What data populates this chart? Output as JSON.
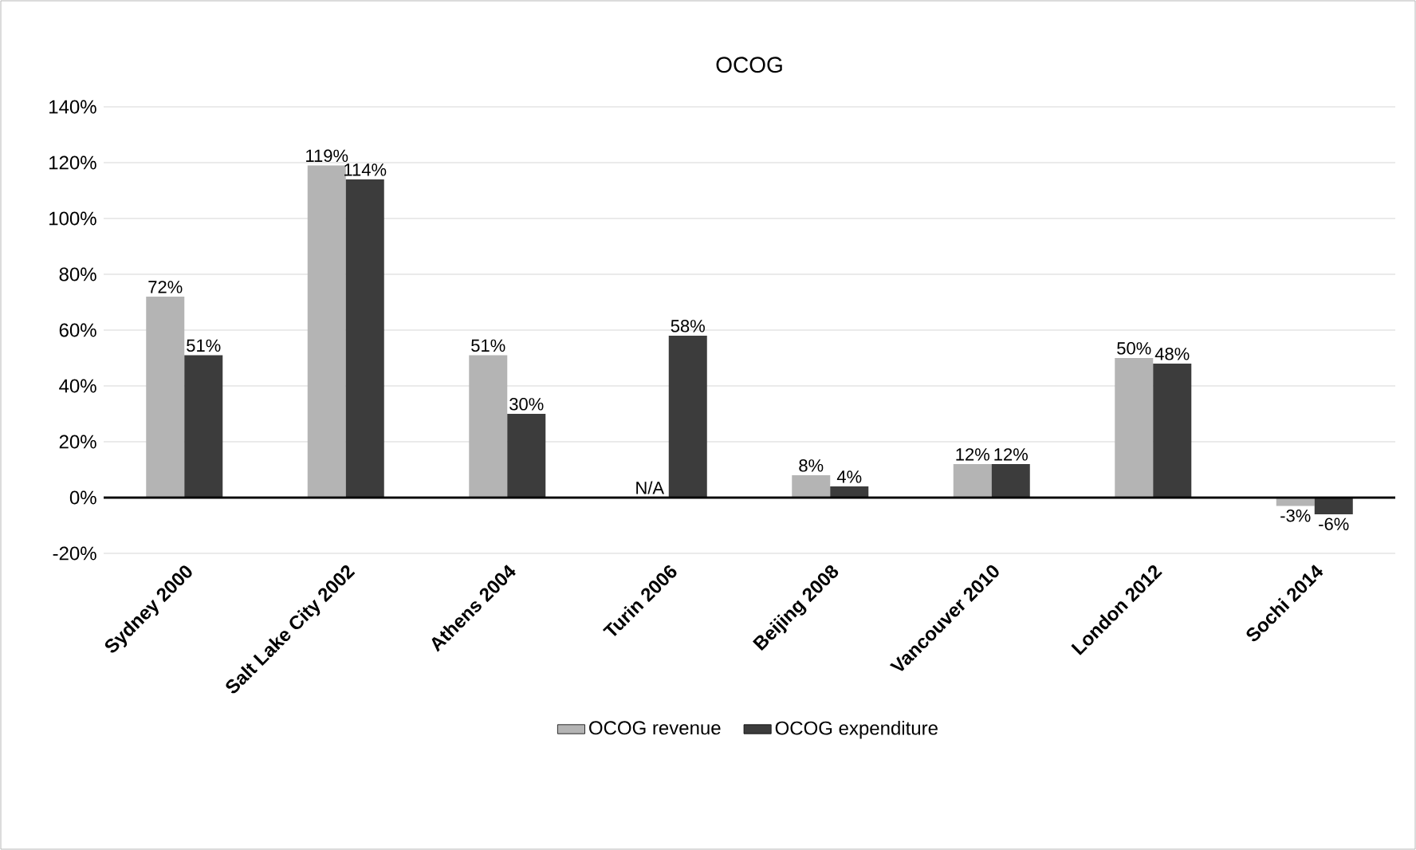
{
  "chart_data": {
    "type": "bar",
    "title": "OCOG",
    "categories": [
      "Sydney 2000",
      "Salt Lake City 2002",
      "Athens 2004",
      "Turin 2006",
      "Beijing 2008",
      "Vancouver 2010",
      "London 2012",
      "Sochi 2014"
    ],
    "series": [
      {
        "name": "OCOG revenue",
        "color": "#b4b4b4",
        "values": [
          72,
          119,
          51,
          null,
          8,
          12,
          50,
          -3
        ],
        "value_labels": [
          "72%",
          "119%",
          "51%",
          "N/A",
          "8%",
          "12%",
          "50%",
          "-3%"
        ]
      },
      {
        "name": "OCOG expenditure",
        "color": "#3c3c3c",
        "values": [
          51,
          114,
          30,
          58,
          4,
          12,
          48,
          -6
        ],
        "value_labels": [
          "51%",
          "114%",
          "30%",
          "58%",
          "4%",
          "12%",
          "48%",
          "-6%"
        ]
      }
    ],
    "ylim": [
      -20,
      140
    ],
    "yticks": [
      {
        "value": -20,
        "label": "-20%"
      },
      {
        "value": 0,
        "label": "0%"
      },
      {
        "value": 20,
        "label": "20%"
      },
      {
        "value": 40,
        "label": "40%"
      },
      {
        "value": 60,
        "label": "60%"
      },
      {
        "value": 80,
        "label": "80%"
      },
      {
        "value": 100,
        "label": "100%"
      },
      {
        "value": 120,
        "label": "120%"
      },
      {
        "value": 140,
        "label": "140%"
      }
    ],
    "grid": "y",
    "legend": "bottom"
  }
}
